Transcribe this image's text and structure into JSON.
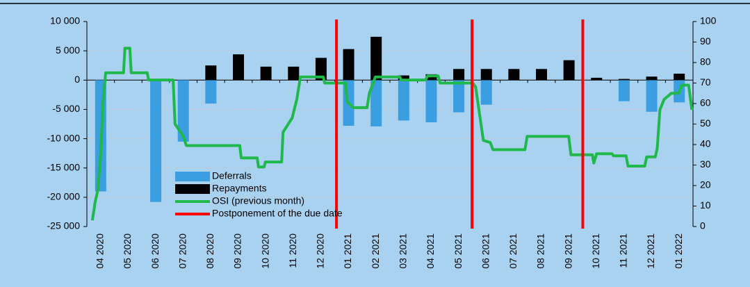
{
  "chart_data": {
    "type": "bar_line",
    "categories": [
      "04 2020",
      "05 2020",
      "06 2020",
      "07 2020",
      "08 2020",
      "09 2020",
      "10 2020",
      "11 2020",
      "12 2020",
      "01 2021",
      "02 2021",
      "03 2021",
      "04 2021",
      "05 2021",
      "06 2021",
      "07 2021",
      "08 2021",
      "09 2021",
      "10 2021",
      "11 2021",
      "12 2021",
      "01 2022"
    ],
    "series": [
      {
        "name": "Deferrals",
        "color": "#3a9ee0",
        "values": [
          -19000,
          0,
          -20800,
          -10500,
          -4000,
          0,
          0,
          0,
          0,
          -7800,
          -7900,
          -6900,
          -7200,
          -5500,
          -4200,
          0,
          0,
          0,
          0,
          -3600,
          -5400,
          -3800
        ]
      },
      {
        "name": "Repayments",
        "color": "#000000",
        "values": [
          0,
          0,
          0,
          0,
          2500,
          4400,
          2300,
          2300,
          3800,
          5300,
          7400,
          800,
          1000,
          1900,
          1900,
          1900,
          1900,
          3400,
          400,
          200,
          600,
          1100
        ]
      },
      {
        "name": "OSI (previous month)",
        "color": "#1fb84a",
        "axis": "y2",
        "x": [
          -0.3,
          -0.2,
          -0.1,
          0.0,
          0.08,
          0.18,
          0.83,
          0.88,
          1.06,
          1.11,
          1.69,
          1.74,
          2.63,
          2.7,
          2.85,
          3.0,
          3.11,
          5.05,
          5.1,
          5.68,
          5.73,
          5.93,
          5.98,
          6.57,
          6.62,
          6.95,
          7.12,
          7.25,
          8.08,
          8.13,
          8.89,
          8.94,
          9.17,
          9.67,
          9.75,
          9.97,
          10.86,
          10.91,
          11.79,
          11.87,
          12.25,
          12.32,
          13.51,
          13.61,
          13.89,
          14.14,
          14.24,
          15.4,
          15.48,
          16.99,
          17.07,
          17.85,
          17.9,
          18.0,
          18.56,
          18.61,
          19.07,
          19.14,
          19.75,
          19.82,
          20.13,
          20.2,
          20.3,
          20.45,
          20.71,
          20.98,
          21.09,
          21.34,
          21.46
        ],
        "values": [
          3,
          12,
          18,
          35,
          60,
          75,
          75,
          87,
          87,
          75,
          75,
          71.5,
          71.5,
          50,
          47,
          44,
          39.5,
          39.5,
          33.5,
          33.5,
          29,
          29,
          31.5,
          31.5,
          46,
          53,
          62,
          73,
          73,
          70,
          70,
          61,
          58,
          58,
          65,
          73,
          73,
          71.5,
          71.5,
          73.5,
          73.5,
          70,
          70,
          68,
          42,
          41,
          37.5,
          37.5,
          44,
          44,
          35,
          35,
          31,
          35.5,
          35.5,
          34.5,
          34.5,
          29.5,
          29.5,
          34,
          34,
          38,
          57,
          62,
          65,
          65,
          69,
          69,
          57
        ]
      },
      {
        "name": "Postponement of the due date",
        "color": "#ff0000",
        "x": [
          8.56,
          13.48,
          17.5
        ]
      }
    ],
    "ylim": [
      -25000,
      10000
    ],
    "yticks": [
      {
        "value": -25000,
        "label": "-25 000"
      },
      {
        "value": -20000,
        "label": "-20 000"
      },
      {
        "value": -15000,
        "label": "-15 000"
      },
      {
        "value": -10000,
        "label": "-10 000"
      },
      {
        "value": -5000,
        "label": "-5 000"
      },
      0,
      {
        "value": 5000,
        "label": "5 000"
      },
      {
        "value": 10000,
        "label": "10 000"
      }
    ],
    "y2lim": [
      0,
      100
    ],
    "y2ticks": [
      0,
      10,
      20,
      30,
      40,
      50,
      60,
      70,
      80,
      90,
      100
    ],
    "grid": true
  }
}
